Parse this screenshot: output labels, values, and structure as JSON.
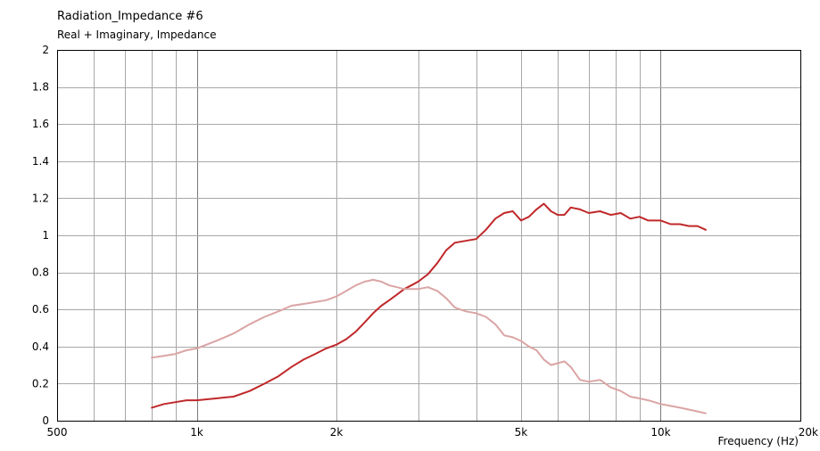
{
  "chart_data": {
    "type": "line",
    "title": "Radiation_Impedance #6",
    "subtitle": "Real + Imaginary, Impedance",
    "xlabel": "Frequency (Hz)",
    "ylabel": "",
    "x_scale": "log",
    "xlim": [
      500,
      20000
    ],
    "ylim": [
      0,
      2
    ],
    "grid": true,
    "x_tick_labels": [
      {
        "value": 500,
        "label": "500"
      },
      {
        "value": 1000,
        "label": "1k"
      },
      {
        "value": 2000,
        "label": "2k"
      },
      {
        "value": 5000,
        "label": "5k"
      },
      {
        "value": 10000,
        "label": "10k"
      },
      {
        "value": 20000,
        "label": "20k"
      }
    ],
    "y_tick_labels": [
      {
        "value": 0,
        "label": "0"
      },
      {
        "value": 0.2,
        "label": "0.2"
      },
      {
        "value": 0.4,
        "label": "0.4"
      },
      {
        "value": 0.6,
        "label": "0.6"
      },
      {
        "value": 0.8,
        "label": "0.8"
      },
      {
        "value": 1,
        "label": "1"
      },
      {
        "value": 1.2,
        "label": "1.2"
      },
      {
        "value": 1.4,
        "label": "1.4"
      },
      {
        "value": 1.6,
        "label": "1.6"
      },
      {
        "value": 1.8,
        "label": "1.8"
      },
      {
        "value": 2,
        "label": "2"
      }
    ],
    "series": [
      {
        "color": "#c0282a",
        "points": [
          [
            800,
            0.07
          ],
          [
            850,
            0.09
          ],
          [
            900,
            0.1
          ],
          [
            950,
            0.11
          ],
          [
            1000,
            0.11
          ],
          [
            1100,
            0.12
          ],
          [
            1200,
            0.13
          ],
          [
            1300,
            0.16
          ],
          [
            1400,
            0.2
          ],
          [
            1500,
            0.24
          ],
          [
            1600,
            0.29
          ],
          [
            1700,
            0.33
          ],
          [
            1800,
            0.36
          ],
          [
            1900,
            0.39
          ],
          [
            2000,
            0.41
          ],
          [
            2100,
            0.44
          ],
          [
            2200,
            0.48
          ],
          [
            2300,
            0.53
          ],
          [
            2400,
            0.58
          ],
          [
            2500,
            0.62
          ],
          [
            2600,
            0.65
          ],
          [
            2700,
            0.68
          ],
          [
            2800,
            0.71
          ],
          [
            2900,
            0.73
          ],
          [
            3000,
            0.75
          ],
          [
            3150,
            0.79
          ],
          [
            3300,
            0.85
          ],
          [
            3450,
            0.92
          ],
          [
            3600,
            0.96
          ],
          [
            3800,
            0.97
          ],
          [
            4000,
            0.98
          ],
          [
            4200,
            1.03
          ],
          [
            4400,
            1.09
          ],
          [
            4600,
            1.12
          ],
          [
            4800,
            1.13
          ],
          [
            5000,
            1.08
          ],
          [
            5200,
            1.1
          ],
          [
            5400,
            1.14
          ],
          [
            5600,
            1.17
          ],
          [
            5800,
            1.13
          ],
          [
            6000,
            1.11
          ],
          [
            6200,
            1.11
          ],
          [
            6400,
            1.15
          ],
          [
            6700,
            1.14
          ],
          [
            7000,
            1.12
          ],
          [
            7400,
            1.13
          ],
          [
            7800,
            1.11
          ],
          [
            8200,
            1.12
          ],
          [
            8600,
            1.09
          ],
          [
            9000,
            1.1
          ],
          [
            9400,
            1.08
          ],
          [
            10000,
            1.08
          ],
          [
            10500,
            1.06
          ],
          [
            11000,
            1.06
          ],
          [
            11500,
            1.05
          ],
          [
            12000,
            1.05
          ],
          [
            12500,
            1.03
          ]
        ]
      },
      {
        "color": "#dba4a4",
        "points": [
          [
            800,
            0.34
          ],
          [
            850,
            0.35
          ],
          [
            900,
            0.36
          ],
          [
            950,
            0.38
          ],
          [
            1000,
            0.39
          ],
          [
            1100,
            0.43
          ],
          [
            1200,
            0.47
          ],
          [
            1300,
            0.52
          ],
          [
            1400,
            0.56
          ],
          [
            1500,
            0.59
          ],
          [
            1600,
            0.62
          ],
          [
            1700,
            0.63
          ],
          [
            1800,
            0.64
          ],
          [
            1900,
            0.65
          ],
          [
            2000,
            0.67
          ],
          [
            2100,
            0.7
          ],
          [
            2200,
            0.73
          ],
          [
            2300,
            0.75
          ],
          [
            2400,
            0.76
          ],
          [
            2500,
            0.75
          ],
          [
            2600,
            0.73
          ],
          [
            2700,
            0.72
          ],
          [
            2800,
            0.71
          ],
          [
            2900,
            0.71
          ],
          [
            3000,
            0.71
          ],
          [
            3150,
            0.72
          ],
          [
            3300,
            0.7
          ],
          [
            3450,
            0.66
          ],
          [
            3600,
            0.61
          ],
          [
            3800,
            0.59
          ],
          [
            4000,
            0.58
          ],
          [
            4200,
            0.56
          ],
          [
            4400,
            0.52
          ],
          [
            4600,
            0.46
          ],
          [
            4800,
            0.45
          ],
          [
            5000,
            0.43
          ],
          [
            5200,
            0.4
          ],
          [
            5400,
            0.38
          ],
          [
            5600,
            0.33
          ],
          [
            5800,
            0.3
          ],
          [
            6000,
            0.31
          ],
          [
            6200,
            0.32
          ],
          [
            6400,
            0.29
          ],
          [
            6700,
            0.22
          ],
          [
            7000,
            0.21
          ],
          [
            7400,
            0.22
          ],
          [
            7800,
            0.18
          ],
          [
            8200,
            0.16
          ],
          [
            8600,
            0.13
          ],
          [
            9000,
            0.12
          ],
          [
            9400,
            0.11
          ],
          [
            10000,
            0.09
          ],
          [
            10500,
            0.08
          ],
          [
            11000,
            0.07
          ],
          [
            11500,
            0.06
          ],
          [
            12000,
            0.05
          ],
          [
            12500,
            0.04
          ]
        ]
      }
    ]
  }
}
